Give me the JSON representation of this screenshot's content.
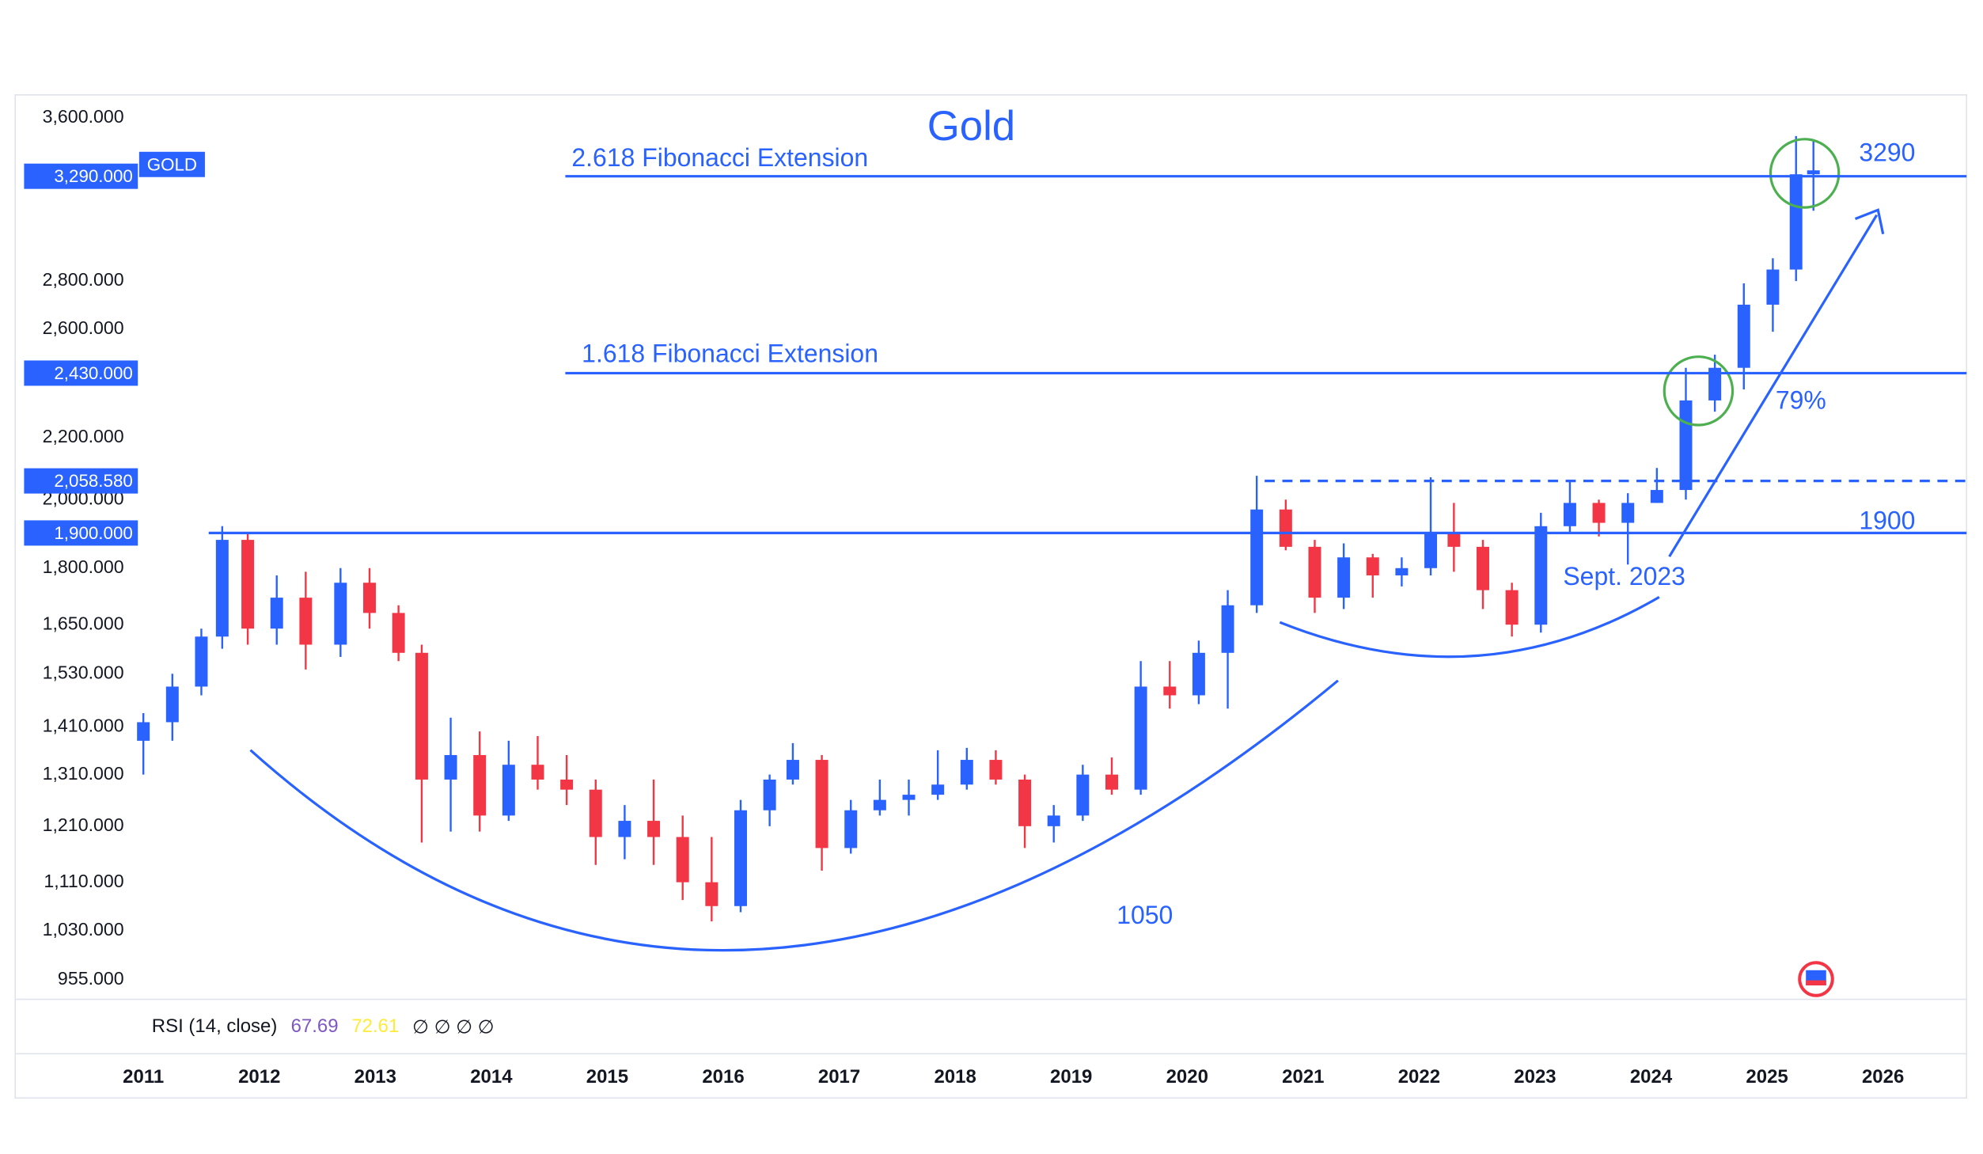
{
  "chart_data": {
    "type": "candlestick",
    "title": "Gold",
    "symbol": "GOLD",
    "log_scale": true,
    "up_color": "#2962ff",
    "down_color": "#f23645",
    "line_color": "#2962ff",
    "ylim": [
      927,
      3729
    ],
    "xlim": [
      2009.895,
      2026.72
    ],
    "yticks": [
      {
        "value": 955,
        "label": "955.000"
      },
      {
        "value": 1030,
        "label": "1,030.000"
      },
      {
        "value": 1110,
        "label": "1,110.000"
      },
      {
        "value": 1210,
        "label": "1,210.000"
      },
      {
        "value": 1310,
        "label": "1,310.000"
      },
      {
        "value": 1410,
        "label": "1,410.000"
      },
      {
        "value": 1530,
        "label": "1,530.000"
      },
      {
        "value": 1650,
        "label": "1,650.000"
      },
      {
        "value": 1800,
        "label": "1,800.000"
      },
      {
        "value": 2000,
        "label": "2,000.000"
      },
      {
        "value": 2200,
        "label": "2,200.000"
      },
      {
        "value": 2600,
        "label": "2,600.000"
      },
      {
        "value": 2800,
        "label": "2,800.000"
      },
      {
        "value": 3600,
        "label": "3,600.000"
      }
    ],
    "xticks": [
      2011,
      2012,
      2013,
      2014,
      2015,
      2016,
      2017,
      2018,
      2019,
      2020,
      2021,
      2022,
      2023,
      2024,
      2025,
      2026
    ],
    "levels": [
      {
        "value": 3290,
        "label": "3,290.000"
      },
      {
        "value": 2430,
        "label": "2,430.000"
      },
      {
        "value": 2058.58,
        "label": "2,058.580"
      },
      {
        "value": 1900,
        "label": "1,900.000"
      }
    ],
    "annotations": [
      "2.618 Fibonacci Extension",
      "1.618 Fibonacci Extension",
      "3290",
      "1900",
      "79%",
      "Sept. 2023",
      "1050"
    ],
    "rsi": {
      "label": "RSI (14, close)",
      "values": [
        67.69,
        72.61
      ],
      "colors": [
        "#7e57c2",
        "#ffeb3b"
      ],
      "extra": "∅ ∅ ∅ ∅"
    },
    "x": [
      2011.0,
      2011.25,
      2011.5,
      2011.68,
      2011.9,
      2012.15,
      2012.4,
      2012.7,
      2012.95,
      2013.2,
      2013.4,
      2013.65,
      2013.9,
      2014.15,
      2014.4,
      2014.65,
      2014.9,
      2015.15,
      2015.4,
      2015.65,
      2015.9,
      2016.15,
      2016.4,
      2016.6,
      2016.85,
      2017.1,
      2017.35,
      2017.6,
      2017.85,
      2018.1,
      2018.35,
      2018.6,
      2018.85,
      2019.1,
      2019.35,
      2019.6,
      2019.85,
      2020.1,
      2020.35,
      2020.6,
      2020.85,
      2021.1,
      2021.35,
      2021.6,
      2021.85,
      2022.1,
      2022.3,
      2022.55,
      2022.8,
      2023.05,
      2023.3,
      2023.55,
      2023.8,
      2024.05,
      2024.3,
      2024.55,
      2024.8,
      2025.05,
      2025.25,
      2025.4
    ],
    "open": [
      1380,
      1420,
      1500,
      1620,
      1880,
      1640,
      1720,
      1600,
      1760,
      1680,
      1580,
      1300,
      1350,
      1230,
      1330,
      1300,
      1280,
      1190,
      1220,
      1190,
      1110,
      1070,
      1240,
      1300,
      1340,
      1170,
      1240,
      1260,
      1270,
      1290,
      1340,
      1300,
      1210,
      1230,
      1310,
      1280,
      1500,
      1480,
      1580,
      1700,
      1970,
      1860,
      1720,
      1830,
      1780,
      1800,
      1900,
      1860,
      1740,
      1650,
      1920,
      1990,
      1930,
      1990,
      2030,
      2330,
      2450,
      2700,
      2850,
      3300
    ],
    "high": [
      1440,
      1530,
      1640,
      1920,
      1900,
      1780,
      1790,
      1800,
      1800,
      1700,
      1600,
      1430,
      1400,
      1380,
      1390,
      1350,
      1300,
      1250,
      1300,
      1230,
      1190,
      1260,
      1310,
      1375,
      1350,
      1260,
      1300,
      1300,
      1360,
      1365,
      1360,
      1310,
      1250,
      1330,
      1345,
      1560,
      1560,
      1610,
      1740,
      2075,
      2000,
      1880,
      1870,
      1840,
      1830,
      2070,
      1990,
      1880,
      1760,
      1960,
      2060,
      2000,
      2020,
      2100,
      2450,
      2500,
      2790,
      2900,
      3500,
      3480
    ],
    "low": [
      1310,
      1380,
      1480,
      1590,
      1600,
      1600,
      1540,
      1570,
      1640,
      1560,
      1180,
      1200,
      1200,
      1220,
      1280,
      1250,
      1140,
      1150,
      1140,
      1080,
      1045,
      1060,
      1210,
      1290,
      1130,
      1160,
      1230,
      1230,
      1260,
      1280,
      1290,
      1170,
      1180,
      1220,
      1270,
      1270,
      1450,
      1460,
      1450,
      1680,
      1850,
      1680,
      1690,
      1720,
      1750,
      1780,
      1790,
      1690,
      1620,
      1630,
      1900,
      1890,
      1810,
      1990,
      2000,
      2290,
      2370,
      2590,
      2800,
      3120
    ],
    "close": [
      1420,
      1500,
      1620,
      1880,
      1640,
      1720,
      1600,
      1760,
      1680,
      1580,
      1300,
      1350,
      1230,
      1330,
      1300,
      1280,
      1190,
      1220,
      1190,
      1110,
      1070,
      1240,
      1300,
      1340,
      1170,
      1240,
      1260,
      1270,
      1290,
      1340,
      1300,
      1210,
      1230,
      1310,
      1280,
      1500,
      1480,
      1580,
      1700,
      1970,
      1860,
      1720,
      1830,
      1780,
      1800,
      1900,
      1860,
      1740,
      1650,
      1920,
      1990,
      1930,
      1990,
      2030,
      2330,
      2450,
      2700,
      2850,
      3300,
      3320
    ]
  }
}
